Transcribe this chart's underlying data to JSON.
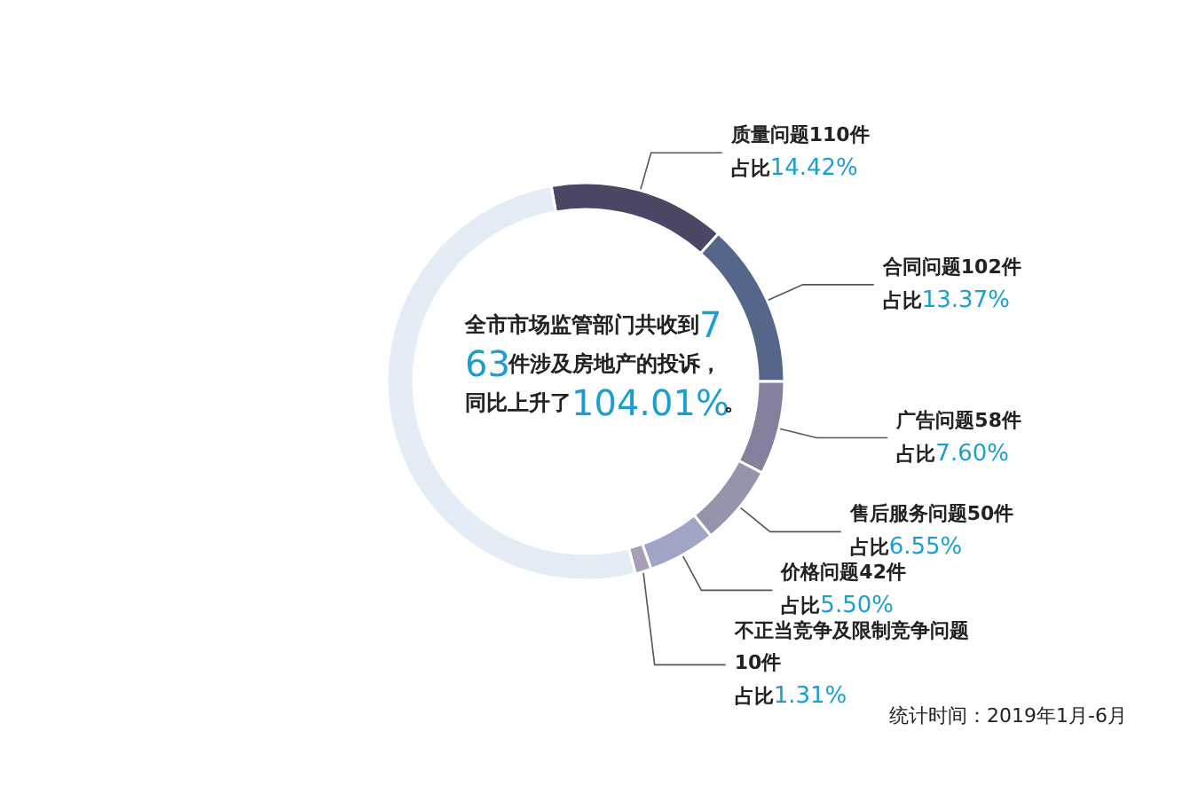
{
  "chart_data": {
    "type": "donut",
    "categories": [
      "质量问题110件",
      "合同问题102件",
      "广告问题58件",
      "售后服务问题50件",
      "价格问题42件",
      "不正当竞争及限制竞争问题10件",
      null
    ],
    "values": [
      110,
      102,
      58,
      50,
      42,
      10,
      391
    ],
    "value_labels": [
      "占比14.42%",
      "占比13.37%",
      "占比7.60%",
      "占比6.55%",
      "占比5.50%",
      "占比1.31%",
      null
    ],
    "colors": [
      "#4b4663",
      "#56668a",
      "#86809e",
      "#9494ac",
      "#a0a5c6",
      "#a79fb8",
      "#e4ecf6"
    ],
    "annotations": [
      "全市市场监管部门共收到763件涉及房地产的投诉，同比上升了104.01%。",
      "统计时间：2019年1月-6月"
    ],
    "legend": false
  }
}
